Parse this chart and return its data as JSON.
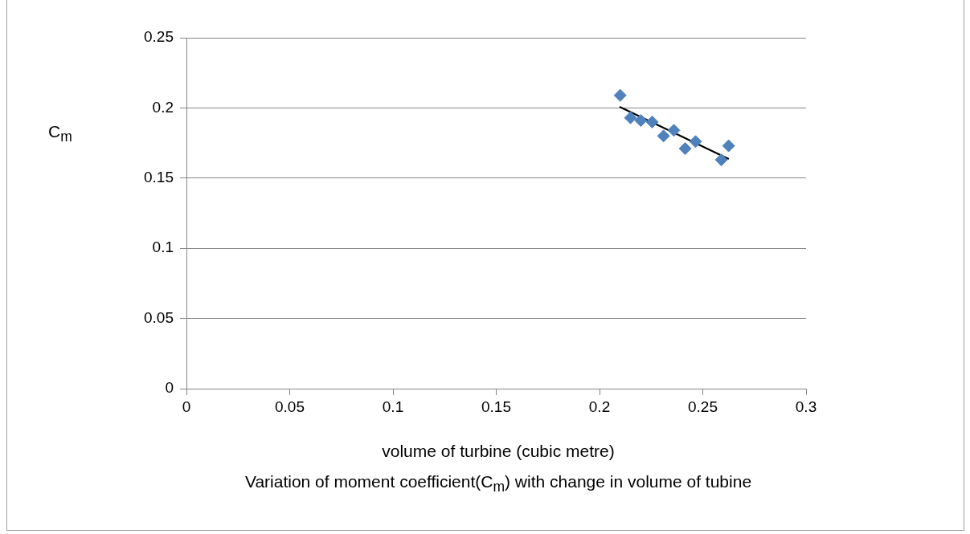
{
  "chart_data": {
    "type": "scatter",
    "title": "Variation of moment coefficient(C$_{m}$) with change in volume of tubine",
    "xlabel": "volume of turbine (cubic metre)",
    "ylabel": "C$_{m}$",
    "x": [
      0.21,
      0.215,
      0.22,
      0.2255,
      0.231,
      0.236,
      0.2415,
      0.2465,
      0.259,
      0.2625
    ],
    "series": [
      {
        "type": "scatter",
        "color": "#4f81bd",
        "marker": "diamond",
        "values": [
          0.209,
          0.193,
          0.191,
          0.19,
          0.18,
          0.184,
          0.171,
          0.176,
          0.163,
          0.173
        ]
      },
      {
        "type": "line",
        "color": "#000000",
        "marker": "none",
        "x": [
          0.2097,
          0.2626
        ],
        "values": [
          0.2008,
          0.1636
        ]
      }
    ],
    "xlim": [
      0,
      0.3
    ],
    "xticks": [
      0,
      0.05,
      0.1,
      0.15,
      0.2,
      0.25,
      0.3
    ],
    "ylim": [
      0,
      0.25
    ],
    "yticks": [
      0,
      0.05,
      0.1,
      0.15,
      0.2,
      0.25
    ],
    "grid": "y",
    "legend": false
  }
}
